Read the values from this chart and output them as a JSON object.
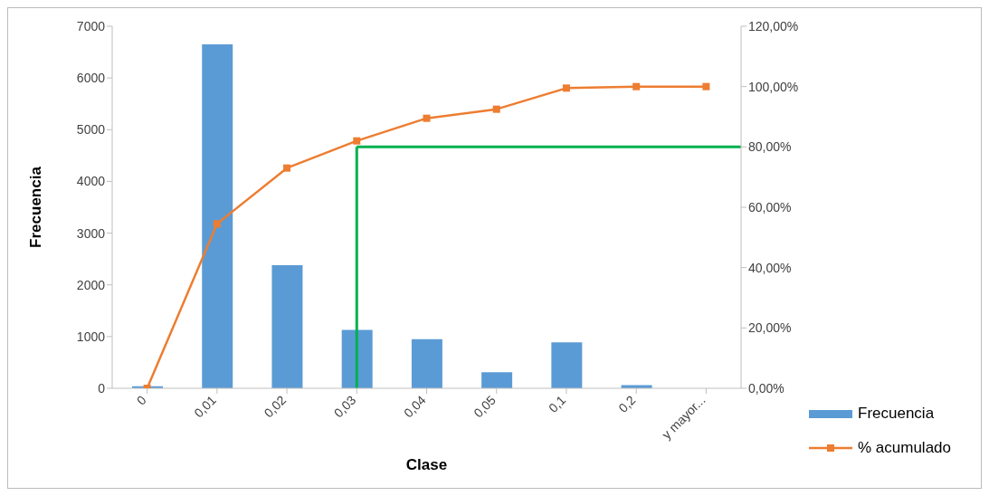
{
  "chart_data": {
    "type": "bar",
    "xlabel": "Clase",
    "ylabel": "Frecuencia",
    "categories": [
      "0",
      "0,01",
      "0,02",
      "0,03",
      "0,04",
      "0,05",
      "0,1",
      "0,2",
      "y mayor..."
    ],
    "series": [
      {
        "name": "Frecuencia",
        "color": "#5b9bd5",
        "values": [
          40,
          6650,
          2380,
          1130,
          950,
          310,
          890,
          60,
          0
        ]
      },
      {
        "name": "% acumulado",
        "type": "line",
        "axis": "y2",
        "color": "#ed7d31",
        "marker": "square",
        "values": [
          0,
          54.5,
          73,
          82,
          89.5,
          92.5,
          99.5,
          100,
          100
        ]
      }
    ],
    "ylim": [
      0,
      7000
    ],
    "yticks": [
      0,
      1000,
      2000,
      3000,
      4000,
      5000,
      6000,
      7000
    ],
    "y2lim": [
      0,
      120
    ],
    "y2ticks": [
      {
        "value": 0,
        "label": "0,00%"
      },
      {
        "value": 20,
        "label": "20,00%"
      },
      {
        "value": 40,
        "label": "40,00%"
      },
      {
        "value": 60,
        "label": "60,00%"
      },
      {
        "value": 80,
        "label": "80,00%"
      },
      {
        "value": 100,
        "label": "100,00%"
      },
      {
        "value": 120,
        "label": "120,00%"
      }
    ],
    "ref_lines": [
      {
        "axis": "x",
        "value": "0,03",
        "color": "#00b050"
      },
      {
        "axis": "y2",
        "value": 80,
        "color": "#00b050"
      }
    ],
    "grid": false,
    "legend": "bottom right"
  }
}
